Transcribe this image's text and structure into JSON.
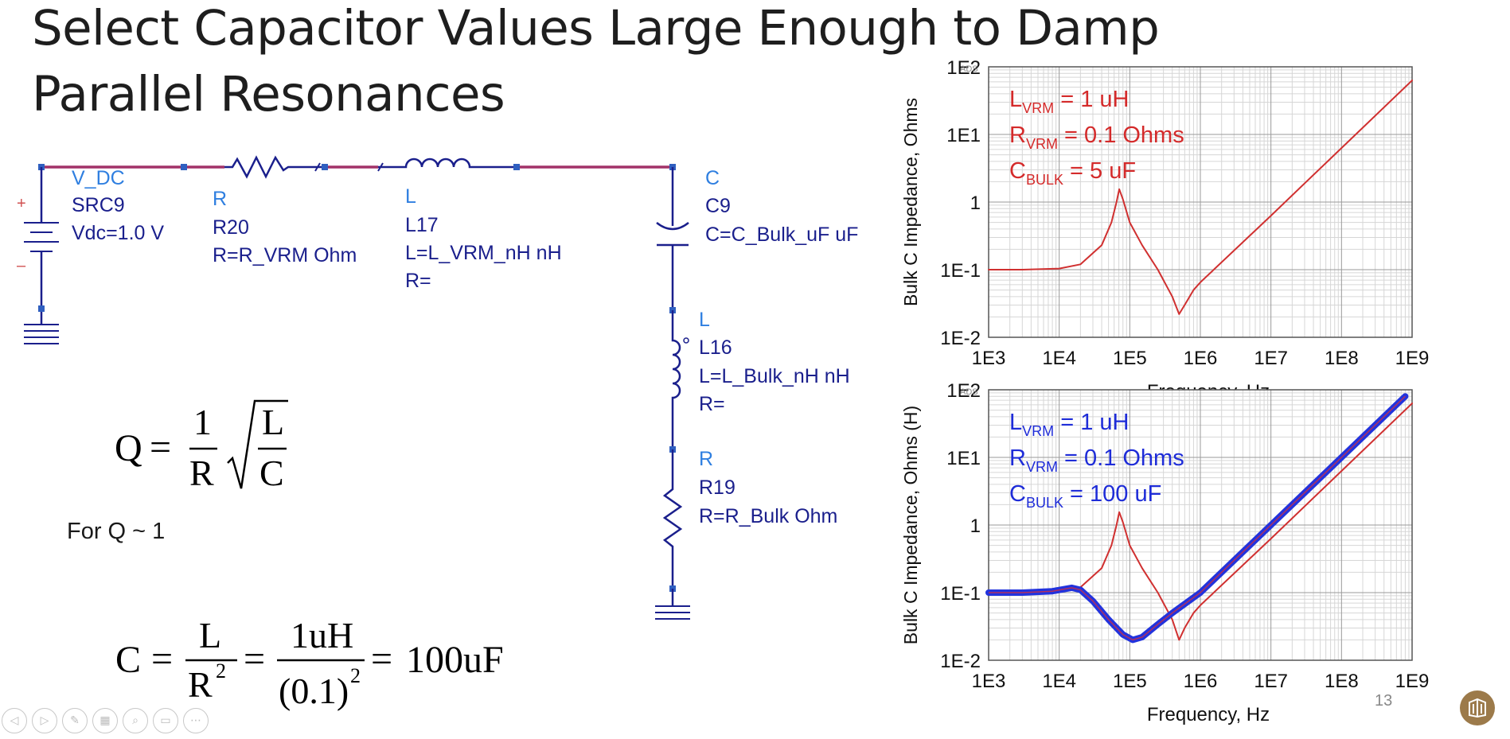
{
  "title": {
    "line1": "Select Capacitor Values Large Enough to Damp",
    "line2": "Parallel Resonances"
  },
  "schematic": {
    "source": {
      "ref": "V_DC",
      "name": "SRC9",
      "param": "Vdc=1.0 V",
      "plus": "+",
      "minus": "–"
    },
    "r20": {
      "ref": "R",
      "name": "R20",
      "param": "R=R_VRM Ohm"
    },
    "l17": {
      "ref": "L",
      "name": "L17",
      "param": "L=L_VRM_nH nH",
      "r": "R="
    },
    "c9": {
      "ref": "C",
      "name": "C9",
      "param": "C=C_Bulk_uF uF"
    },
    "l16": {
      "ref": "L",
      "name": "L16",
      "param": "L=L_Bulk_nH nH",
      "r": "R="
    },
    "r19": {
      "ref": "R",
      "name": "R19",
      "param": "R=R_Bulk Ohm"
    }
  },
  "equations": {
    "q_lhs": "Q",
    "q_num": "1",
    "q_den": "R",
    "q_rad_num": "L",
    "q_rad_den": "C",
    "note": "For Q ~ 1",
    "c_lhs": "C",
    "c_f1_num": "L",
    "c_f1_den": "R",
    "c_f1_exp": "2",
    "c_f2_num": "1uH",
    "c_f2_den": "(0.1)",
    "c_f2_exp": "2",
    "c_result": "100uF",
    "eq": "="
  },
  "chart_data": [
    {
      "type": "line",
      "xscale": "log",
      "yscale": "log",
      "xlim": [
        1000,
        1000000000
      ],
      "ylim": [
        0.01,
        100
      ],
      "xlabel": "Frequency, Hz",
      "ylabel": "Bulk C Impedance, Ohms",
      "x_ticks": [
        "1E3",
        "1E4",
        "1E5",
        "1E6",
        "1E7",
        "1E8",
        "1E9"
      ],
      "y_ticks": [
        "1E2",
        "1E1",
        "1",
        "1E-1",
        "1E-2"
      ],
      "grid": true,
      "annotations": [
        {
          "main": "L",
          "sub": "VRM",
          "rest": " = 1 uH",
          "color": "#d42a2a"
        },
        {
          "main": "R",
          "sub": "VRM",
          "rest": " = 0.1 Ohms",
          "color": "#d42a2a"
        },
        {
          "main": "C",
          "sub": "BULK",
          "rest": " = 5 uF",
          "color": "#d42a2a"
        }
      ],
      "series": [
        {
          "color": "#d03030",
          "x": [
            1000,
            3000,
            10000,
            20000,
            40000,
            55000,
            65000,
            71000,
            80000,
            100000,
            150000,
            250000,
            400000,
            500000,
            600000,
            800000,
            1000000,
            10000000,
            100000000,
            1000000000
          ],
          "y": [
            0.1,
            0.1,
            0.104,
            0.12,
            0.23,
            0.5,
            1.0,
            1.55,
            1.1,
            0.5,
            0.23,
            0.1,
            0.04,
            0.022,
            0.03,
            0.05,
            0.065,
            0.63,
            6.3,
            63
          ]
        }
      ]
    },
    {
      "type": "line",
      "xscale": "log",
      "yscale": "log",
      "xlim": [
        1000,
        1000000000
      ],
      "ylim": [
        0.01,
        100
      ],
      "xlabel": "Frequency, Hz",
      "ylabel": "Bulk C Impedance, Ohms (H)",
      "x_ticks": [
        "1E3",
        "1E4",
        "1E5",
        "1E6",
        "1E7",
        "1E8",
        "1E9"
      ],
      "y_ticks": [
        "1E2",
        "1E1",
        "1",
        "1E-1",
        "1E-2"
      ],
      "grid": true,
      "annotations": [
        {
          "main": "L",
          "sub": "VRM",
          "rest": " = 1 uH",
          "color": "#1e2cd8"
        },
        {
          "main": "R",
          "sub": "VRM",
          "rest": " = 0.1 Ohms",
          "color": "#1e2cd8"
        },
        {
          "main": "C",
          "sub": "BULK",
          "rest": " = 100 uF",
          "color": "#1e2cd8"
        }
      ],
      "series": [
        {
          "color": "#d03030",
          "x": [
            1000,
            3000,
            10000,
            20000,
            40000,
            55000,
            65000,
            71000,
            80000,
            100000,
            150000,
            250000,
            400000,
            500000,
            600000,
            800000,
            1000000,
            10000000,
            100000000,
            1000000000
          ],
          "y": [
            0.1,
            0.1,
            0.104,
            0.12,
            0.23,
            0.5,
            1.0,
            1.55,
            1.1,
            0.5,
            0.23,
            0.1,
            0.04,
            0.02,
            0.03,
            0.05,
            0.065,
            0.63,
            6.3,
            63
          ]
        },
        {
          "color": "#2233dd",
          "x": [
            1000,
            3000,
            8000,
            15000,
            20000,
            30000,
            50000,
            80000,
            110000,
            150000,
            250000,
            400000,
            1000000,
            10000000,
            100000000,
            800000000
          ],
          "y": [
            0.1,
            0.1,
            0.105,
            0.118,
            0.11,
            0.075,
            0.04,
            0.024,
            0.02,
            0.022,
            0.034,
            0.05,
            0.1,
            1.0,
            10,
            80
          ]
        }
      ]
    }
  ],
  "slide": {
    "page_number": "13"
  },
  "controls": [
    {
      "icon": "prev-arrow-icon",
      "glyph": "◁"
    },
    {
      "icon": "next-arrow-icon",
      "glyph": "▷"
    },
    {
      "icon": "pen-icon",
      "glyph": "✎"
    },
    {
      "icon": "slides-grid-icon",
      "glyph": "▦"
    },
    {
      "icon": "zoom-icon",
      "glyph": "⌕"
    },
    {
      "icon": "subtitles-icon",
      "glyph": "▭"
    },
    {
      "icon": "more-icon",
      "glyph": "⋯"
    }
  ]
}
